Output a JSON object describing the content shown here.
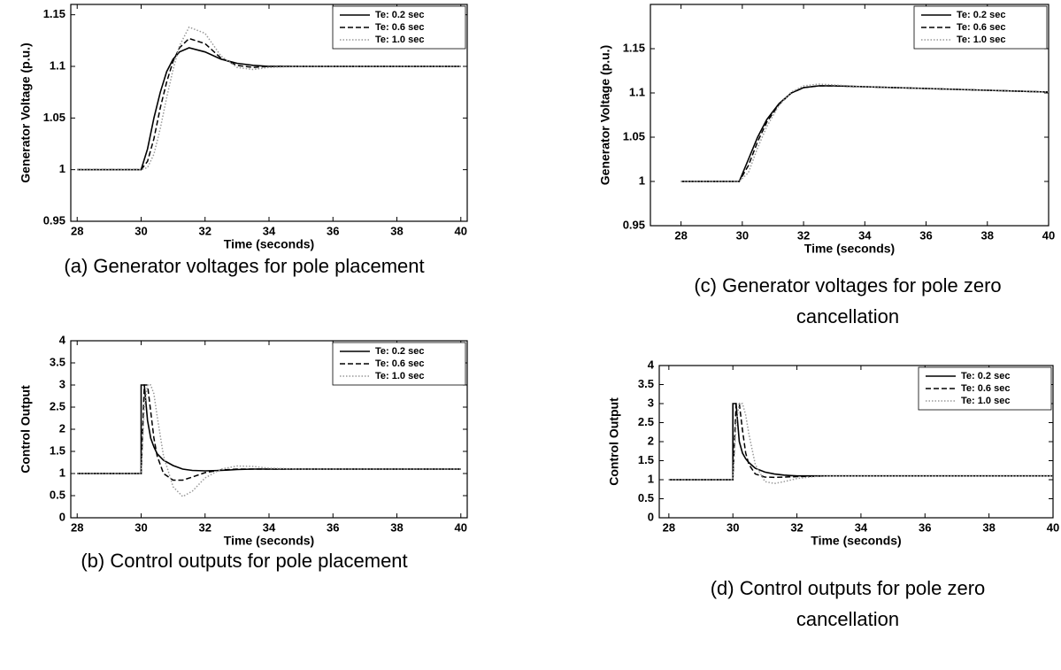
{
  "chart_data": [
    {
      "type": "line",
      "caption": "(a) Generator voltages for pole placement",
      "x_label": "Time (seconds)",
      "y_label": "Generator Voltage (p.u.)",
      "xlim": [
        27.8,
        40.2
      ],
      "xticks": [
        28,
        30,
        32,
        34,
        36,
        38,
        40
      ],
      "ylim": [
        0.95,
        1.16
      ],
      "yticks": [
        0.95,
        1,
        1.05,
        1.1,
        1.15
      ],
      "legend": "upper right",
      "x": [
        28,
        30,
        30.2,
        30.4,
        30.6,
        30.8,
        31,
        31.2,
        31.5,
        32,
        32.5,
        33,
        33.5,
        34,
        35,
        36,
        38,
        40
      ],
      "series": [
        {
          "name": "Te: 0.2 sec",
          "color": "#000000",
          "dash": "solid",
          "values": [
            1,
            1,
            1.02,
            1.05,
            1.075,
            1.095,
            1.107,
            1.114,
            1.118,
            1.114,
            1.107,
            1.103,
            1.101,
            1.1,
            1.1,
            1.1,
            1.1,
            1.1
          ]
        },
        {
          "name": "Te: 0.6 sec",
          "color": "#000000",
          "dash": "dashed",
          "values": [
            1,
            1,
            1.008,
            1.03,
            1.06,
            1.085,
            1.105,
            1.118,
            1.127,
            1.122,
            1.108,
            1.101,
            1.099,
            1.1,
            1.1,
            1.1,
            1.1,
            1.1
          ]
        },
        {
          "name": "Te: 1.0 sec",
          "color": "#999999",
          "dash": "dotted",
          "values": [
            1,
            1,
            1.002,
            1.015,
            1.04,
            1.07,
            1.097,
            1.12,
            1.138,
            1.132,
            1.11,
            1.099,
            1.097,
            1.099,
            1.1,
            1.1,
            1.1,
            1.1
          ]
        }
      ]
    },
    {
      "type": "line",
      "caption": "(b) Control outputs for pole placement",
      "x_label": "Time (seconds)",
      "y_label": "Control Output",
      "xlim": [
        27.8,
        40.2
      ],
      "xticks": [
        28,
        30,
        32,
        34,
        36,
        38,
        40
      ],
      "ylim": [
        0,
        4
      ],
      "yticks": [
        0,
        0.5,
        1,
        1.5,
        2,
        2.5,
        3,
        3.5,
        4
      ],
      "legend": "upper right",
      "x": [
        28,
        30,
        30,
        30.1,
        30.2,
        30.3,
        30.4,
        30.5,
        30.7,
        31,
        31.3,
        31.6,
        32,
        32.5,
        33,
        33.5,
        34,
        35,
        36,
        38,
        40
      ],
      "series": [
        {
          "name": "Te: 0.2 sec",
          "color": "#000000",
          "dash": "solid",
          "values": [
            1,
            1,
            3,
            3,
            2.2,
            1.8,
            1.6,
            1.45,
            1.3,
            1.18,
            1.1,
            1.07,
            1.06,
            1.07,
            1.09,
            1.1,
            1.1,
            1.1,
            1.1,
            1.1,
            1.1
          ]
        },
        {
          "name": "Te: 0.6 sec",
          "color": "#000000",
          "dash": "dashed",
          "values": [
            1,
            1,
            1,
            3,
            3,
            2.4,
            1.8,
            1.4,
            1,
            0.85,
            0.85,
            0.92,
            1.02,
            1.08,
            1.1,
            1.1,
            1.1,
            1.1,
            1.1,
            1.1,
            1.1
          ]
        },
        {
          "name": "Te: 1.0 sec",
          "color": "#999999",
          "dash": "dotted",
          "values": [
            1,
            1,
            1,
            2.5,
            3,
            3,
            2.8,
            2.3,
            1.4,
            0.7,
            0.48,
            0.6,
            0.9,
            1.1,
            1.17,
            1.16,
            1.12,
            1.1,
            1.1,
            1.1,
            1.1
          ]
        }
      ]
    },
    {
      "type": "line",
      "caption": "(c) Generator voltages for pole zero cancellation",
      "x_label": "Time (seconds)",
      "y_label": "Generator Voltage (p.u.)",
      "xlim": [
        27,
        40
      ],
      "xticks": [
        28,
        30,
        32,
        34,
        36,
        38,
        40
      ],
      "ylim": [
        0.95,
        1.2
      ],
      "yticks": [
        0.95,
        1,
        1.05,
        1.1,
        1.15
      ],
      "legend": "upper right",
      "x": [
        28,
        29.9,
        30.2,
        30.5,
        30.8,
        31.2,
        31.6,
        32,
        32.5,
        33,
        34,
        36,
        38,
        40
      ],
      "series": [
        {
          "name": "Te: 0.2 sec",
          "color": "#000000",
          "dash": "solid",
          "values": [
            1,
            1,
            1.025,
            1.05,
            1.07,
            1.088,
            1.1,
            1.106,
            1.108,
            1.108,
            1.107,
            1.105,
            1.103,
            1.101
          ]
        },
        {
          "name": "Te: 0.6 sec",
          "color": "#000000",
          "dash": "dashed",
          "values": [
            1,
            1,
            1.018,
            1.045,
            1.067,
            1.087,
            1.1,
            1.106,
            1.108,
            1.108,
            1.107,
            1.105,
            1.103,
            1.101
          ]
        },
        {
          "name": "Te: 1.0 sec",
          "color": "#999999",
          "dash": "dotted",
          "values": [
            1,
            1,
            1.01,
            1.038,
            1.062,
            1.086,
            1.101,
            1.108,
            1.11,
            1.109,
            1.107,
            1.105,
            1.103,
            1.101
          ]
        }
      ]
    },
    {
      "type": "line",
      "caption": "(d) Control outputs for pole zero cancellation",
      "x_label": "Time (seconds)",
      "y_label": "Control Output",
      "xlim": [
        27.7,
        40
      ],
      "xticks": [
        28,
        30,
        32,
        34,
        36,
        38,
        40
      ],
      "ylim": [
        0,
        4
      ],
      "yticks": [
        0,
        0.5,
        1,
        1.5,
        2,
        2.5,
        3,
        3.5,
        4
      ],
      "legend": "upper right",
      "x": [
        28,
        30,
        30,
        30.1,
        30.2,
        30.3,
        30.4,
        30.5,
        30.7,
        31,
        31.3,
        31.6,
        32,
        32.5,
        33,
        33.5,
        34,
        35,
        36,
        38,
        40
      ],
      "series": [
        {
          "name": "Te: 0.2 sec",
          "color": "#000000",
          "dash": "solid",
          "values": [
            1,
            1,
            3,
            3,
            2,
            1.7,
            1.55,
            1.45,
            1.3,
            1.2,
            1.15,
            1.12,
            1.1,
            1.1,
            1.1,
            1.1,
            1.1,
            1.1,
            1.1,
            1.1,
            1.1
          ]
        },
        {
          "name": "Te: 0.6 sec",
          "color": "#000000",
          "dash": "dashed",
          "values": [
            1,
            1,
            1,
            3,
            3,
            2.3,
            1.7,
            1.4,
            1.15,
            1.07,
            1.06,
            1.07,
            1.08,
            1.09,
            1.1,
            1.1,
            1.1,
            1.1,
            1.1,
            1.1,
            1.1
          ]
        },
        {
          "name": "Te: 1.0 sec",
          "color": "#999999",
          "dash": "dotted",
          "values": [
            1,
            1,
            1,
            2.5,
            3,
            3,
            2.7,
            2.2,
            1.4,
            0.95,
            0.9,
            0.95,
            1.03,
            1.08,
            1.1,
            1.1,
            1.1,
            1.1,
            1.1,
            1.1,
            1.1
          ]
        }
      ]
    }
  ]
}
